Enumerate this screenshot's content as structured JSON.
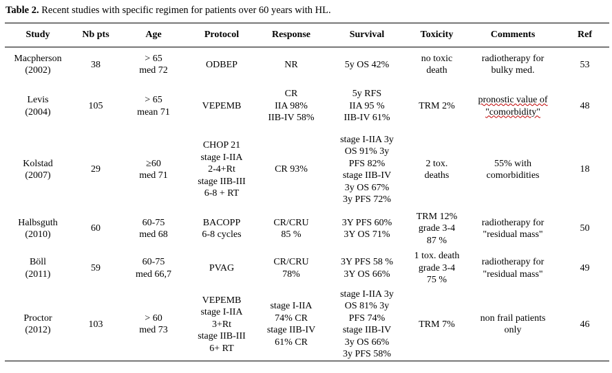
{
  "caption": {
    "label": "Table 2.",
    "text": "Recent studies with specific regimen for patients over 60 years with HL."
  },
  "headers": [
    "Study",
    "Nb pts",
    "Age",
    "Protocol",
    "Response",
    "Survival",
    "Toxicity",
    "Comments",
    "Ref"
  ],
  "rows": [
    {
      "study": [
        "Macpherson",
        "(2002)"
      ],
      "nb_pts": "38",
      "age": [
        "> 65",
        "med 72"
      ],
      "protocol": [
        "ODBEP"
      ],
      "response": [
        "NR"
      ],
      "survival": [
        "5y OS 42%"
      ],
      "toxicity": [
        "no toxic",
        "death"
      ],
      "comments": [
        "radiotherapy for",
        "bulky med."
      ],
      "ref": "53"
    },
    {
      "study": [
        "Levis",
        "(2004)"
      ],
      "nb_pts": "105",
      "age": [
        "> 65",
        "mean 71"
      ],
      "protocol": [
        "VEPEMB"
      ],
      "response": [
        "CR",
        "IIA  98%",
        "IIB-IV  58%"
      ],
      "survival": [
        "5y RFS",
        "IIA  95 %",
        "IIB-IV  61%"
      ],
      "toxicity": [
        "TRM 2%"
      ],
      "comments": [
        "pronostic value of",
        "\"comorbidity\""
      ],
      "ref": "48"
    },
    {
      "study": [
        "Kolstad",
        "(2007)"
      ],
      "nb_pts": "29",
      "age": [
        "≥60",
        "med 71"
      ],
      "protocol": [
        "CHOP 21",
        "stage I-IIA",
        "2-4+Rt",
        "stage IIB-III",
        "6-8 + RT"
      ],
      "response": [
        "CR 93%"
      ],
      "survival": [
        "stage I-IIA   3y",
        "OS 91%   3y",
        "PFS 82%",
        "stage IIB-IV",
        "3y OS 67%",
        "3y PFS 72%"
      ],
      "toxicity": [
        "2 tox.",
        "deaths"
      ],
      "comments": [
        "55% with",
        "comorbidities"
      ],
      "ref": "18"
    },
    {
      "study": [
        "Halbsguth",
        "(2010)"
      ],
      "nb_pts": "60",
      "age": [
        "60-75",
        "med 68"
      ],
      "protocol": [
        "BACOPP",
        "6-8 cycles"
      ],
      "response": [
        "CR/CRU",
        "85 %"
      ],
      "survival": [
        "3Y PFS 60%",
        "3Y   OS  71%"
      ],
      "toxicity": [
        "TRM 12%",
        "grade 3-4",
        "87 %"
      ],
      "comments": [
        "radiotherapy for",
        "\"residual mass\""
      ],
      "ref": "50"
    },
    {
      "study": [
        "Böll",
        "(2011)"
      ],
      "nb_pts": "59",
      "age": [
        "60-75",
        "med 66,7"
      ],
      "protocol": [
        "PVAG"
      ],
      "response": [
        "CR/CRU",
        "78%"
      ],
      "survival": [
        "3Y PFS 58 %",
        "3Y   OS  66%"
      ],
      "toxicity": [
        "1 tox. death",
        "grade 3-4",
        "75 %"
      ],
      "comments": [
        "radiotherapy for",
        "\"residual mass\""
      ],
      "ref": "49"
    },
    {
      "study": [
        "Proctor",
        "(2012)"
      ],
      "nb_pts": "103",
      "age": [
        "> 60",
        "med 73"
      ],
      "protocol": [
        "VEPEMB",
        "stage I-IIA",
        "3+Rt",
        "stage IIB-III",
        "6+ RT"
      ],
      "response": [
        "stage I-IIA",
        "74% CR",
        "stage IIB-IV",
        "61% CR"
      ],
      "survival": [
        "stage I-IIA   3y",
        "OS 81%   3y",
        "PFS 74%",
        "stage IIB-IV",
        "3y OS 66%",
        "3y PFS 58%"
      ],
      "toxicity": [
        "TRM 7%"
      ],
      "comments": [
        "non frail patients",
        "only"
      ],
      "ref": "46"
    }
  ]
}
